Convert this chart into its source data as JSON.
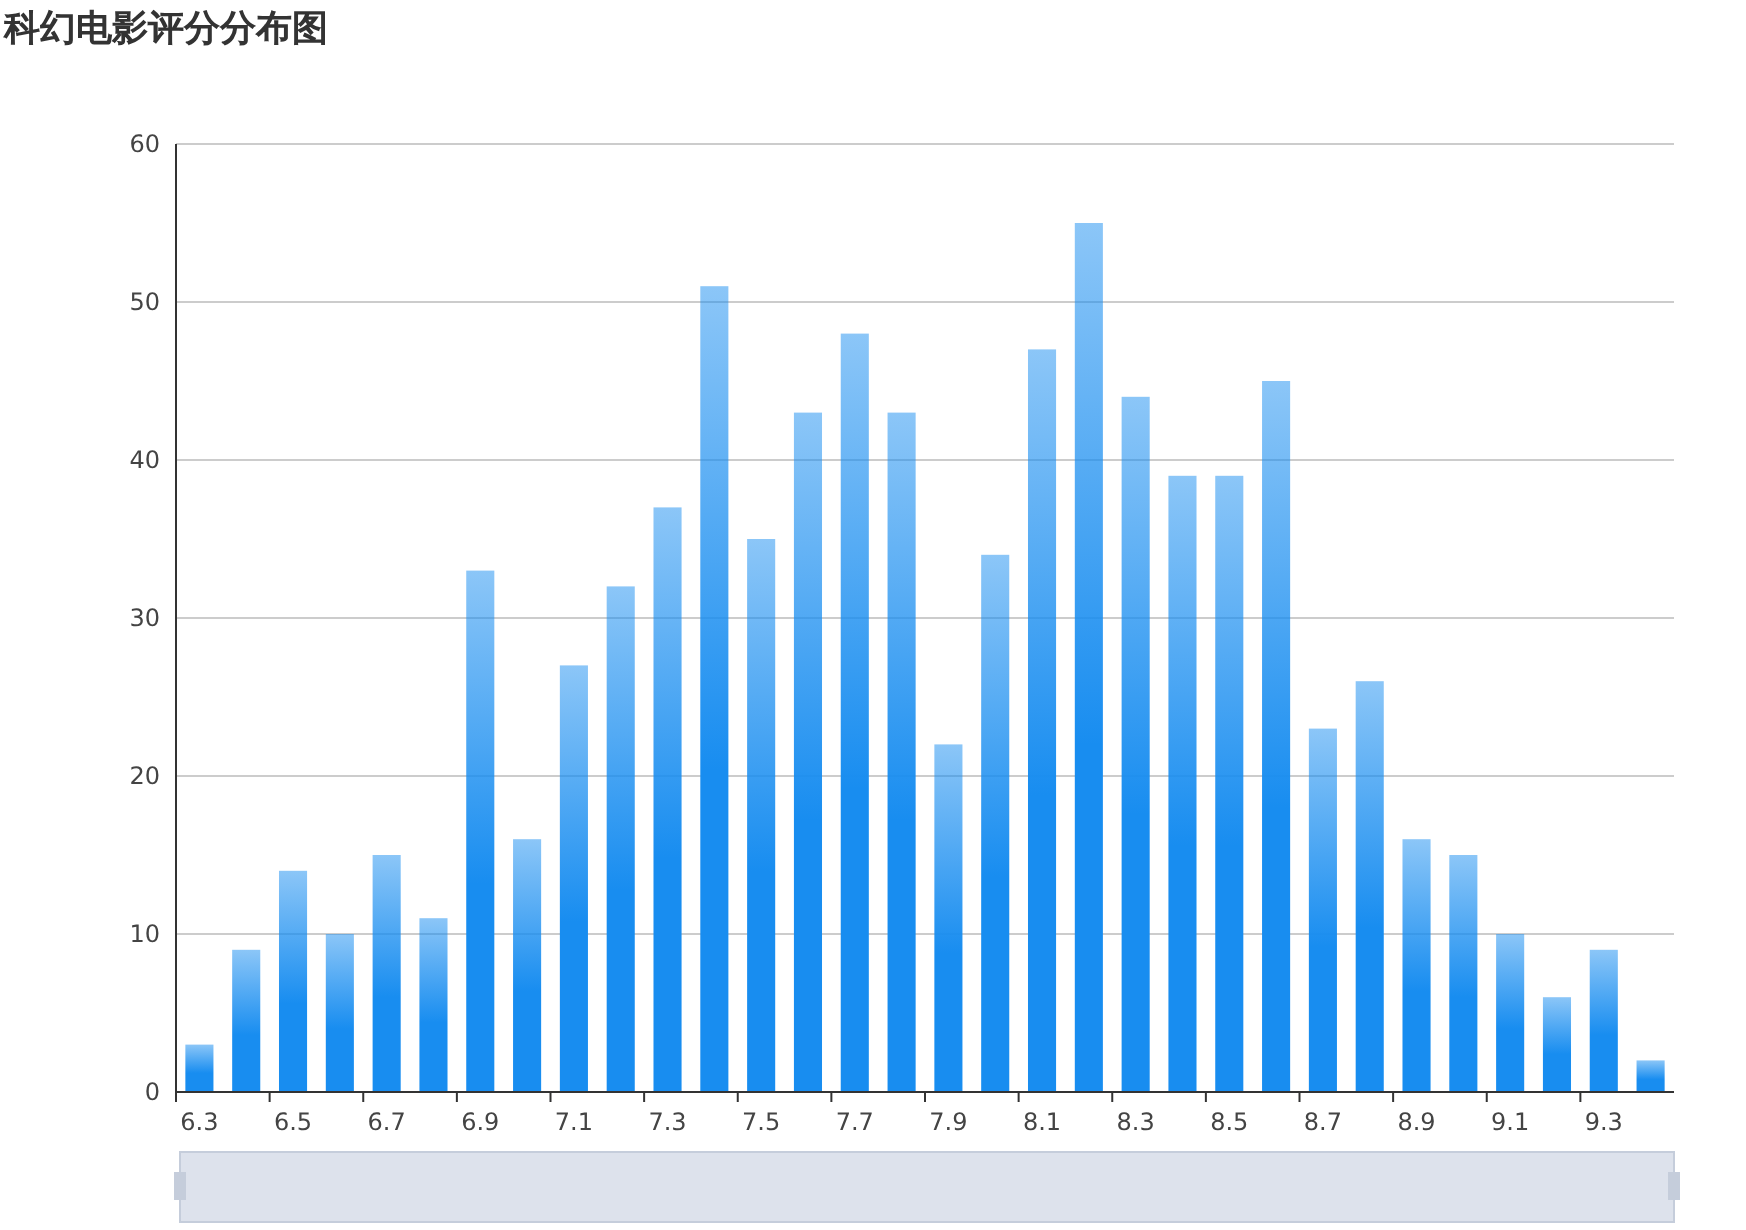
{
  "chart_data": {
    "type": "bar",
    "title": "科幻电影评分分布图",
    "categories": [
      "6.3",
      null,
      "6.5",
      null,
      "6.7",
      null,
      "6.9",
      null,
      "7.1",
      null,
      "7.3",
      null,
      "7.5",
      null,
      "7.7",
      null,
      "7.9",
      null,
      "8.1",
      null,
      "8.3",
      null,
      "8.5",
      null,
      "8.7",
      null,
      "8.9",
      null,
      "9.1",
      null,
      "9.3",
      null
    ],
    "values": [
      3,
      9,
      14,
      10,
      15,
      11,
      33,
      16,
      27,
      32,
      37,
      51,
      35,
      43,
      48,
      43,
      22,
      34,
      47,
      55,
      44,
      39,
      39,
      45,
      23,
      26,
      16,
      15,
      10,
      6,
      9,
      2
    ],
    "color": "#188df0",
    "ylim": [
      0,
      60
    ],
    "yticks": [
      0,
      10,
      20,
      30,
      40,
      50,
      60
    ],
    "grid": "y"
  }
}
